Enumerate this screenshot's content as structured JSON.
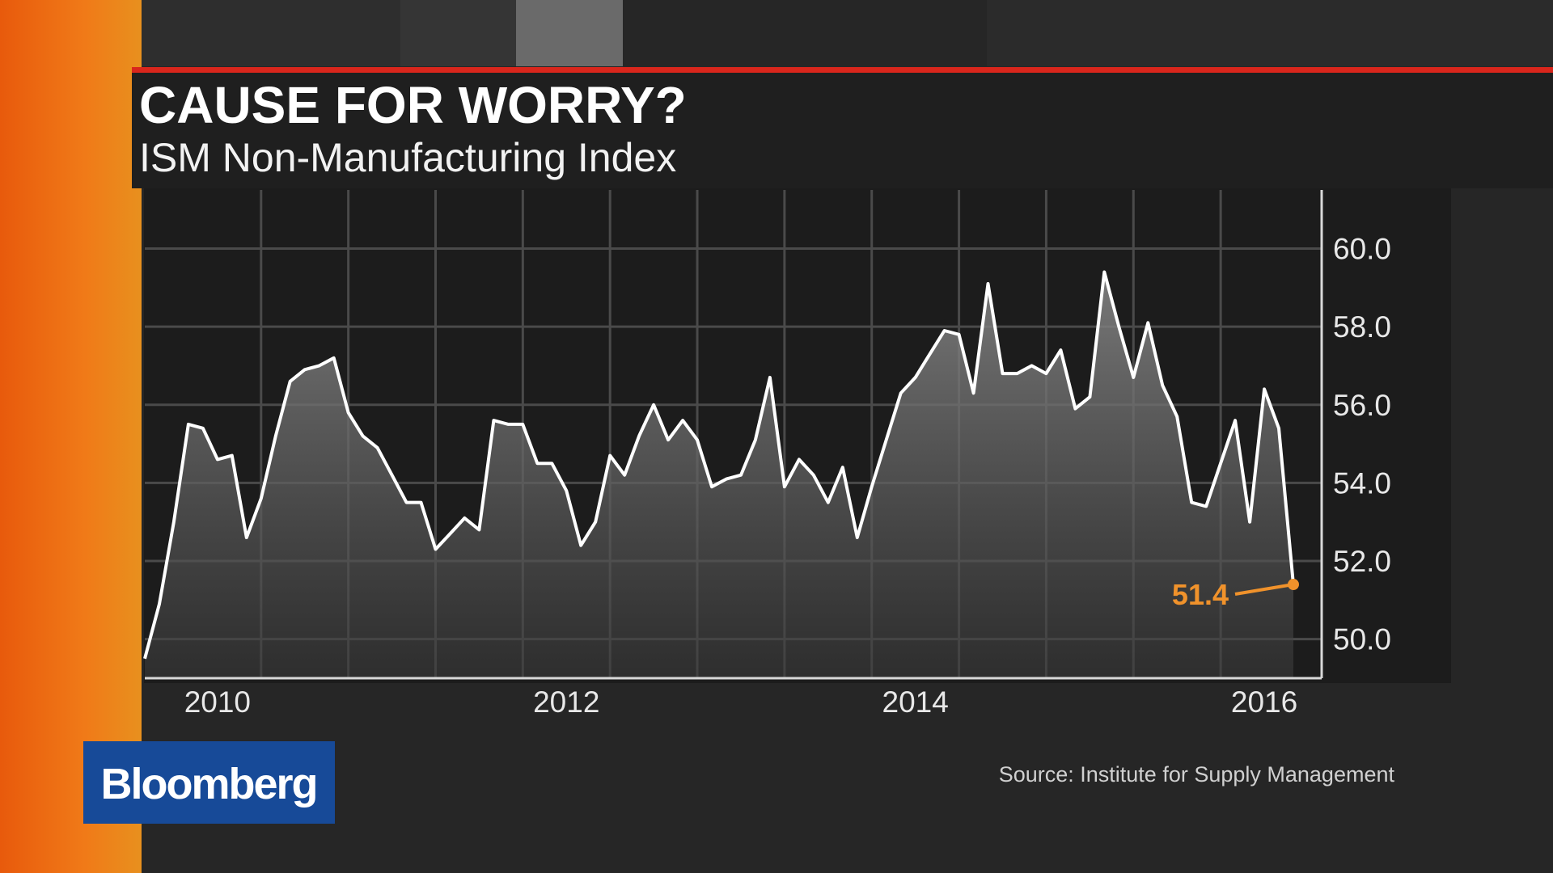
{
  "brand": "Bloomberg",
  "chart_data": {
    "type": "line",
    "title": "CAUSE FOR WORRY?",
    "subtitle": "ISM Non-Manufacturing Index",
    "source": "Source: Institute for Supply Management",
    "categories": [
      null,
      null,
      null,
      null,
      null,
      "2010",
      null,
      null,
      null,
      null,
      null,
      null,
      null,
      null,
      null,
      null,
      null,
      null,
      null,
      null,
      null,
      null,
      null,
      null,
      null,
      null,
      null,
      null,
      null,
      "2012",
      null,
      null,
      null,
      null,
      null,
      null,
      null,
      null,
      null,
      null,
      null,
      null,
      null,
      null,
      null,
      null,
      null,
      null,
      null,
      null,
      null,
      null,
      null,
      "2014",
      null,
      null,
      null,
      null,
      null,
      null,
      null,
      null,
      null,
      null,
      null,
      null,
      null,
      null,
      null,
      null,
      null,
      null,
      null,
      null,
      null,
      null,
      null,
      "2016",
      null,
      null
    ],
    "series": [
      {
        "name": "ISM Non-Manufacturing Index",
        "color": "#ffffff",
        "values": [
          49.5,
          50.9,
          53.0,
          55.5,
          55.4,
          54.6,
          54.7,
          52.6,
          53.6,
          55.2,
          56.6,
          56.9,
          57.0,
          57.2,
          55.8,
          55.2,
          54.9,
          54.2,
          53.5,
          53.5,
          52.3,
          52.7,
          53.1,
          52.8,
          55.6,
          55.5,
          55.5,
          54.5,
          54.5,
          53.8,
          52.4,
          53.0,
          54.7,
          54.2,
          55.2,
          56.0,
          55.1,
          55.6,
          55.1,
          53.9,
          54.1,
          54.2,
          55.1,
          56.7,
          53.9,
          54.6,
          54.2,
          53.5,
          54.4,
          52.6,
          53.9,
          55.1,
          56.3,
          56.7,
          57.3,
          57.9,
          57.8,
          56.3,
          59.1,
          56.8,
          56.8,
          57.0,
          56.8,
          57.4,
          55.9,
          56.2,
          59.4,
          58.0,
          56.7,
          58.1,
          56.5,
          55.7,
          53.5,
          53.4,
          54.5,
          55.6,
          53.0,
          56.4,
          55.4,
          51.4
        ]
      }
    ],
    "highlight_color": "#f0922b",
    "ylim": [
      49,
      61.5
    ],
    "yticks": [
      {
        "value": 50,
        "label": "50.0"
      },
      {
        "value": 52,
        "label": "52.0"
      },
      {
        "value": 54,
        "label": "54.0"
      },
      {
        "value": 56,
        "label": "56.0"
      },
      {
        "value": 58,
        "label": "58.0"
      },
      {
        "value": 60,
        "label": "60.0"
      }
    ],
    "grid": true
  }
}
